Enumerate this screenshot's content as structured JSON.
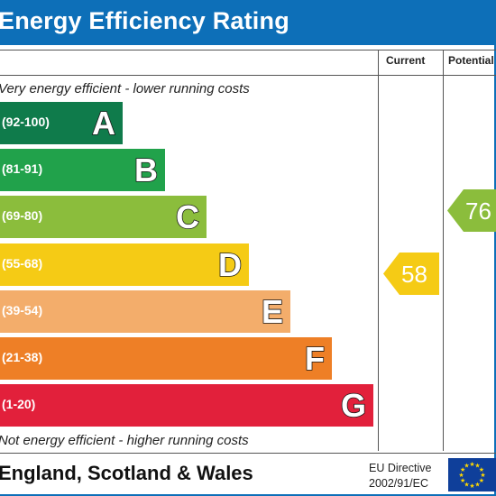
{
  "title": "Energy Efficiency Rating",
  "columns": {
    "current": "Current",
    "potential": "Potential"
  },
  "notes": {
    "top": "Very energy efficient - lower running costs",
    "bottom": "Not energy efficient - higher running costs"
  },
  "bands": [
    {
      "range": "(92-100)",
      "letter": "A",
      "color": "#0f7b4b"
    },
    {
      "range": "(81-91)",
      "letter": "B",
      "color": "#21a24b"
    },
    {
      "range": "(69-80)",
      "letter": "C",
      "color": "#8bbd3c"
    },
    {
      "range": "(55-68)",
      "letter": "D",
      "color": "#f5cb15"
    },
    {
      "range": "(39-54)",
      "letter": "E",
      "color": "#f3ad6b"
    },
    {
      "range": "(21-38)",
      "letter": "F",
      "color": "#ee7f26"
    },
    {
      "range": "(1-20)",
      "letter": "G",
      "color": "#e2203b"
    }
  ],
  "current": {
    "value": "58",
    "band": "D",
    "color": "#f5cb15"
  },
  "potential": {
    "value": "76",
    "band": "C",
    "color": "#8bbd3c"
  },
  "footer": {
    "region": "England, Scotland & Wales",
    "directive_line1": "EU Directive",
    "directive_line2": "2002/91/EC"
  }
}
